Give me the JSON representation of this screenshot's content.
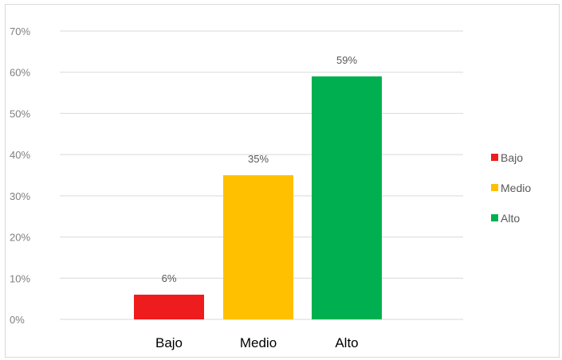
{
  "chart_data": {
    "type": "bar",
    "categories": [
      "Bajo",
      "Medio",
      "Alto"
    ],
    "values": [
      6,
      35,
      59
    ],
    "data_labels": [
      "6%",
      "35%",
      "59%"
    ],
    "colors": [
      "#ee1c1c",
      "#ffc000",
      "#00b050"
    ],
    "ylim": [
      0,
      70
    ],
    "yticks": [
      0,
      10,
      20,
      30,
      40,
      50,
      60,
      70
    ],
    "ytick_labels": [
      "0%",
      "10%",
      "20%",
      "30%",
      "40%",
      "50%",
      "60%",
      "70%"
    ],
    "grid": true,
    "legend": {
      "position": "right",
      "entries": [
        "Bajo",
        "Medio",
        "Alto"
      ]
    }
  }
}
